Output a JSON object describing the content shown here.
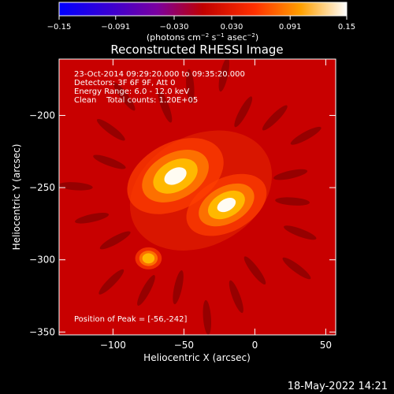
{
  "chart_data": {
    "type": "heatmap",
    "title": "Reconstructed RHESSI Image",
    "xlabel": "Heliocentric X (arcsec)",
    "ylabel": "Heliocentric Y (arcsec)",
    "xlim": [
      -138,
      57
    ],
    "ylim": [
      -352,
      -161
    ],
    "x_ticks": [
      -100,
      -50,
      0,
      50
    ],
    "x_tick_labels": [
      "−100",
      "−50",
      "0",
      "50"
    ],
    "y_ticks": [
      -200,
      -250,
      -300,
      -350
    ],
    "y_tick_labels": [
      "−200",
      "−250",
      "−300",
      "−350"
    ],
    "colorbar": {
      "ticks": [
        -0.15,
        -0.091,
        -0.03,
        0.03,
        0.091,
        0.15
      ],
      "tick_labels": [
        "−0.15",
        "−0.091",
        "−0.030",
        "0.030",
        "0.091",
        "0.15"
      ],
      "units": "(photons cm",
      "units_exp1": "−2",
      "units_mid": " s",
      "units_exp2": "−1",
      "units_end": " asec",
      "units_exp3": "−2",
      "units_close": ")",
      "range": [
        -0.15,
        0.15
      ]
    },
    "sources": [
      {
        "x": -56,
        "y": -242,
        "sigma_x": 14,
        "sigma_y": 9,
        "angle": -28,
        "intensity": 0.15
      },
      {
        "x": -20,
        "y": -262,
        "sigma_x": 13,
        "sigma_y": 8,
        "angle": -28,
        "intensity": 0.135
      },
      {
        "x": -75,
        "y": -299,
        "sigma_x": 6,
        "sigma_y": 5,
        "angle": 0,
        "intensity": 0.09
      }
    ],
    "annotations": {
      "line1": "23-Oct-2014 09:29:20.000 to 09:35:20.000",
      "line2": "Detectors: 3F 6F 9F, Att 0",
      "line3": "Energy Range: 6.0 - 12.0 keV",
      "line4": "Clean    Total counts: 1.20E+05",
      "peak": "Position of Peak = [-56,-242]"
    },
    "footer_timestamp": "18-May-2022 14:21"
  }
}
